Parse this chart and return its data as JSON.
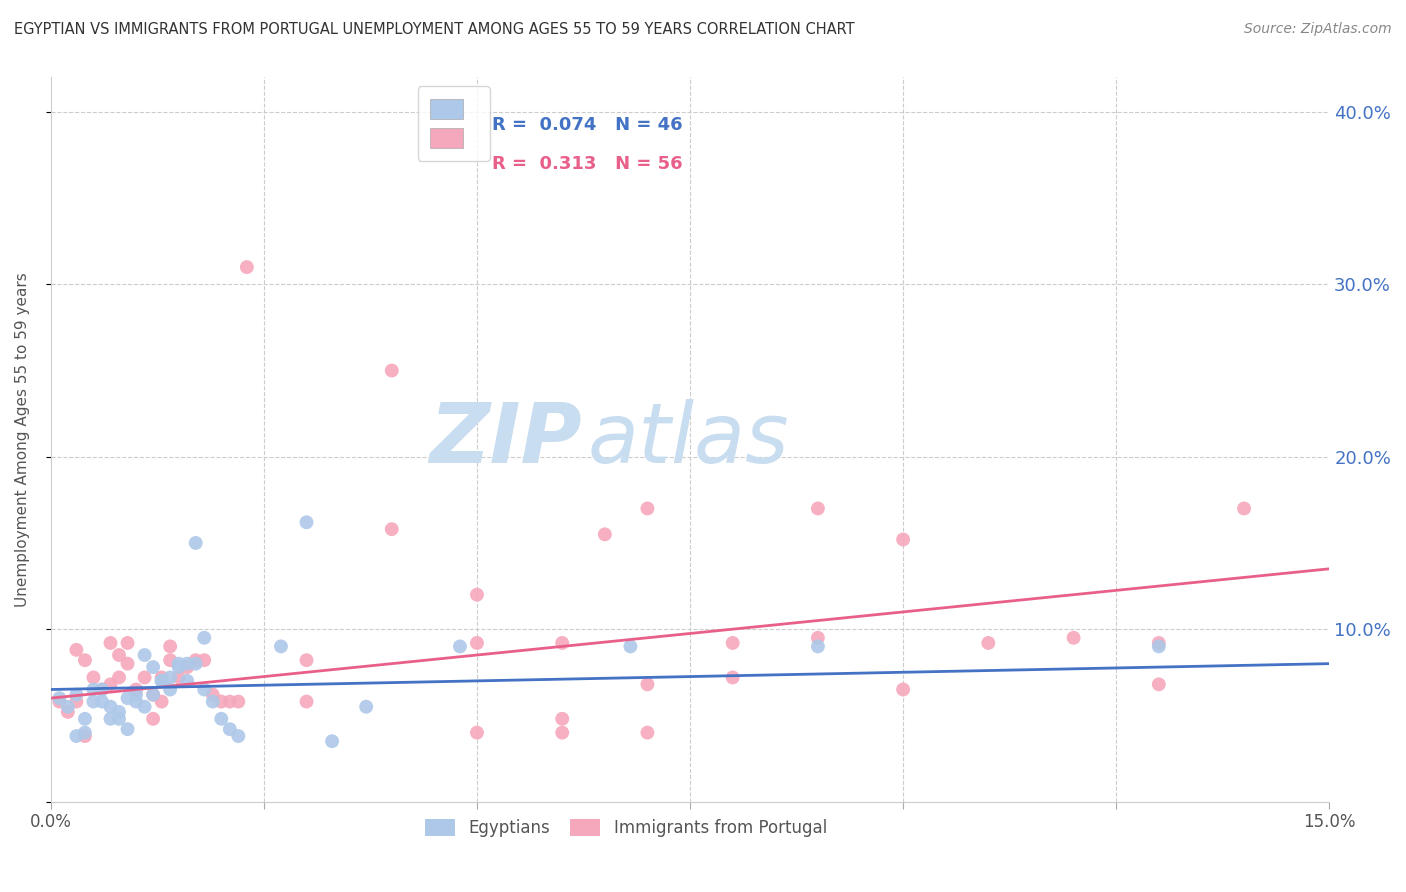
{
  "title": "EGYPTIAN VS IMMIGRANTS FROM PORTUGAL UNEMPLOYMENT AMONG AGES 55 TO 59 YEARS CORRELATION CHART",
  "source": "Source: ZipAtlas.com",
  "ylabel": "Unemployment Among Ages 55 to 59 years",
  "xlim": [
    0.0,
    0.15
  ],
  "ylim": [
    0.0,
    0.42
  ],
  "color_egyptian": "#adc8e8",
  "color_portugal": "#f5a8bc",
  "line_color_egyptian": "#4472c4",
  "line_color_portugal": "#e8608a",
  "watermark_zip": "ZIP",
  "watermark_atlas": "atlas",
  "watermark_color": "#ddeeff",
  "legend_line1_r": "0.074",
  "legend_line1_n": "46",
  "legend_line2_r": "0.313",
  "legend_line2_n": "56",
  "eg_x": [
    0.001,
    0.002,
    0.003,
    0.004,
    0.005,
    0.006,
    0.007,
    0.008,
    0.009,
    0.01,
    0.011,
    0.012,
    0.013,
    0.014,
    0.015,
    0.016,
    0.017,
    0.018,
    0.019,
    0.02,
    0.021,
    0.022,
    0.003,
    0.004,
    0.005,
    0.006,
    0.007,
    0.008,
    0.009,
    0.01,
    0.011,
    0.012,
    0.013,
    0.014,
    0.015,
    0.016,
    0.017,
    0.018,
    0.027,
    0.03,
    0.033,
    0.037,
    0.048,
    0.068,
    0.09,
    0.13
  ],
  "eg_y": [
    0.06,
    0.055,
    0.062,
    0.048,
    0.058,
    0.065,
    0.055,
    0.048,
    0.06,
    0.062,
    0.055,
    0.062,
    0.07,
    0.065,
    0.078,
    0.07,
    0.08,
    0.065,
    0.058,
    0.048,
    0.042,
    0.038,
    0.038,
    0.04,
    0.065,
    0.058,
    0.048,
    0.052,
    0.042,
    0.058,
    0.085,
    0.078,
    0.07,
    0.072,
    0.08,
    0.08,
    0.15,
    0.095,
    0.09,
    0.162,
    0.035,
    0.055,
    0.09,
    0.09,
    0.09,
    0.09
  ],
  "pt_x": [
    0.001,
    0.002,
    0.003,
    0.004,
    0.005,
    0.006,
    0.007,
    0.008,
    0.009,
    0.01,
    0.011,
    0.012,
    0.013,
    0.014,
    0.015,
    0.016,
    0.017,
    0.018,
    0.019,
    0.02,
    0.021,
    0.022,
    0.003,
    0.004,
    0.007,
    0.008,
    0.009,
    0.012,
    0.013,
    0.014,
    0.023,
    0.03,
    0.04,
    0.05,
    0.06,
    0.065,
    0.07,
    0.08,
    0.09,
    0.1,
    0.11,
    0.12,
    0.13,
    0.14,
    0.05,
    0.06,
    0.07,
    0.08,
    0.09,
    0.1,
    0.03,
    0.04,
    0.05,
    0.06,
    0.07,
    0.13
  ],
  "pt_y": [
    0.058,
    0.052,
    0.058,
    0.038,
    0.072,
    0.065,
    0.068,
    0.072,
    0.08,
    0.065,
    0.072,
    0.048,
    0.058,
    0.082,
    0.072,
    0.078,
    0.082,
    0.082,
    0.062,
    0.058,
    0.058,
    0.058,
    0.088,
    0.082,
    0.092,
    0.085,
    0.092,
    0.062,
    0.072,
    0.09,
    0.31,
    0.058,
    0.25,
    0.12,
    0.048,
    0.155,
    0.068,
    0.092,
    0.17,
    0.152,
    0.092,
    0.095,
    0.092,
    0.17,
    0.04,
    0.04,
    0.04,
    0.072,
    0.095,
    0.065,
    0.082,
    0.158,
    0.092,
    0.092,
    0.17,
    0.068
  ]
}
